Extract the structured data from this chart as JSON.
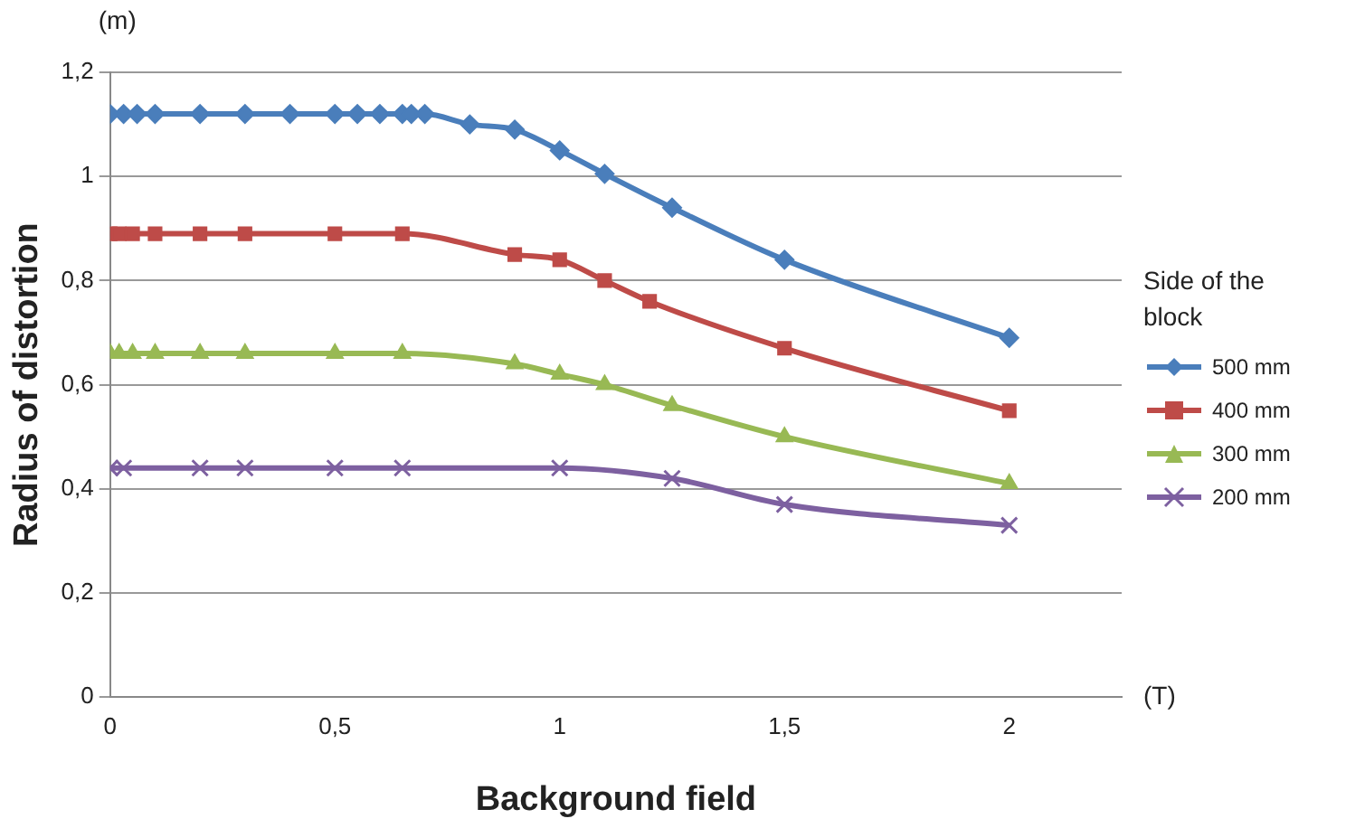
{
  "chart_data": {
    "type": "line",
    "xlabel": "Background field",
    "ylabel": "Radius of distortion",
    "legend_title": "Side of the block",
    "annotations": [
      "(m)",
      "(T)"
    ],
    "xlim": [
      0,
      2.25
    ],
    "xticks": [
      0,
      {
        "value": 0.5,
        "label": "0,5"
      },
      1,
      {
        "value": 1.5,
        "label": "1,5"
      },
      2
    ],
    "ylim": [
      0,
      1.2
    ],
    "yticks": [
      0,
      {
        "value": 0.2,
        "label": "0,2"
      },
      {
        "value": 0.4,
        "label": "0,4"
      },
      {
        "value": 0.6,
        "label": "0,6"
      },
      {
        "value": 0.8,
        "label": "0,8"
      },
      1,
      {
        "value": 1.2,
        "label": "1,2"
      }
    ],
    "grid": "y",
    "legend": "right",
    "series": [
      {
        "name": "500 mm",
        "color": "#4a7ebb",
        "marker": "diamond",
        "x": [
          0,
          0.03,
          0.06,
          0.1,
          0.2,
          0.3,
          0.4,
          0.5,
          0.55,
          0.6,
          0.65,
          0.67,
          0.7,
          0.8,
          0.9,
          1.0,
          1.1,
          1.25,
          1.5,
          2.0
        ],
        "values": [
          1.12,
          1.12,
          1.12,
          1.12,
          1.12,
          1.12,
          1.12,
          1.12,
          1.12,
          1.12,
          1.12,
          1.12,
          1.12,
          1.1,
          1.09,
          1.05,
          1.005,
          0.94,
          0.84,
          0.69
        ]
      },
      {
        "name": "400 mm",
        "color": "#be4b48",
        "marker": "square",
        "x": [
          0,
          0.02,
          0.05,
          0.1,
          0.2,
          0.3,
          0.5,
          0.65,
          0.9,
          1.0,
          1.1,
          1.2,
          1.5,
          2.0
        ],
        "values": [
          0.89,
          0.89,
          0.89,
          0.89,
          0.89,
          0.89,
          0.89,
          0.89,
          0.85,
          0.84,
          0.8,
          0.76,
          0.67,
          0.55
        ]
      },
      {
        "name": "300 mm",
        "color": "#98b954",
        "marker": "triangle",
        "x": [
          0,
          0.02,
          0.05,
          0.1,
          0.2,
          0.3,
          0.5,
          0.65,
          0.9,
          1.0,
          1.1,
          1.25,
          1.5,
          2.0
        ],
        "values": [
          0.66,
          0.66,
          0.66,
          0.66,
          0.66,
          0.66,
          0.66,
          0.66,
          0.64,
          0.62,
          0.6,
          0.56,
          0.5,
          0.41
        ]
      },
      {
        "name": "200 mm",
        "color": "#7d60a0",
        "marker": "cross",
        "x": [
          0,
          0.03,
          0.2,
          0.3,
          0.5,
          0.65,
          1.0,
          1.25,
          1.5,
          2.0
        ],
        "values": [
          0.44,
          0.44,
          0.44,
          0.44,
          0.44,
          0.44,
          0.44,
          0.42,
          0.37,
          0.33
        ]
      }
    ]
  }
}
